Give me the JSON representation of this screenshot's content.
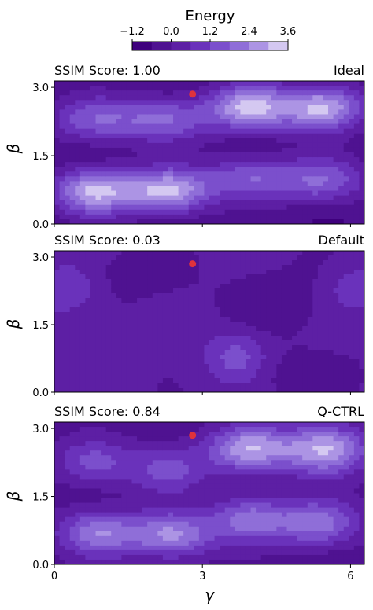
{
  "chart_data": {
    "type": "heatmap",
    "subtype": "filled-contour",
    "colorbar": {
      "label": "Energy",
      "ticks": [
        "−1.2",
        "0.0",
        "1.2",
        "2.4",
        "3.6"
      ],
      "tick_values": [
        -1.2,
        0.0,
        1.2,
        2.4,
        3.6
      ],
      "range": [
        -1.2,
        3.6
      ],
      "levels": [
        -1.2,
        -0.6,
        0.0,
        0.6,
        1.2,
        1.8,
        2.4,
        3.0,
        3.6
      ],
      "colors": [
        "#3f007d",
        "#4f1291",
        "#5d1fa4",
        "#6a32bb",
        "#7b4fcc",
        "#8f6ed8",
        "#ac94e4",
        "#d4c8f1"
      ],
      "orientation": "horizontal",
      "placement": "top"
    },
    "xlabel": "γ",
    "ylabel": "β",
    "xlim": [
      0,
      6.28
    ],
    "ylim": [
      0,
      3.14
    ],
    "xticks": [
      "0",
      "3",
      "6"
    ],
    "xtick_values": [
      0,
      3,
      6
    ],
    "yticks": [
      "0.0",
      "1.5",
      "3.0"
    ],
    "ytick_values": [
      0.0,
      1.5,
      3.0
    ],
    "marker": {
      "x": 2.8,
      "y": 2.85,
      "color": "#e0323c"
    },
    "panels": [
      {
        "title_left": "SSIM Score: 1.00",
        "title_right": "Ideal",
        "base": -0.55,
        "peaks": [
          {
            "x": 0.8,
            "y": 2.3,
            "a": 2.2,
            "sx": 0.65,
            "sy": 0.36
          },
          {
            "x": 2.25,
            "y": 2.3,
            "a": 2.2,
            "sx": 0.65,
            "sy": 0.36
          },
          {
            "x": 3.95,
            "y": 2.55,
            "a": 3.6,
            "sx": 0.6,
            "sy": 0.36
          },
          {
            "x": 5.45,
            "y": 2.55,
            "a": 3.6,
            "sx": 0.6,
            "sy": 0.36
          },
          {
            "x": 0.8,
            "y": 0.72,
            "a": 3.6,
            "sx": 0.6,
            "sy": 0.36
          },
          {
            "x": 2.3,
            "y": 0.72,
            "a": 3.6,
            "sx": 0.6,
            "sy": 0.36
          },
          {
            "x": 3.95,
            "y": 1.0,
            "a": 2.2,
            "sx": 0.65,
            "sy": 0.36
          },
          {
            "x": 5.45,
            "y": 0.95,
            "a": 2.2,
            "sx": 0.65,
            "sy": 0.36
          }
        ]
      },
      {
        "title_left": "SSIM Score: 0.03",
        "title_right": "Default",
        "base": 0.15,
        "peaks": [
          {
            "x": 3.7,
            "y": 0.8,
            "a": 1.4,
            "sx": 0.45,
            "sy": 0.4
          },
          {
            "x": 0.25,
            "y": 2.3,
            "a": 1.1,
            "sx": 0.5,
            "sy": 0.4
          },
          {
            "x": 6.1,
            "y": 2.3,
            "a": 0.9,
            "sx": 0.4,
            "sy": 0.35
          },
          {
            "x": 4.5,
            "y": 2.0,
            "a": -0.6,
            "sx": 0.7,
            "sy": 0.5
          },
          {
            "x": 1.5,
            "y": 2.6,
            "a": -0.5,
            "sx": 0.8,
            "sy": 0.4
          },
          {
            "x": 5.0,
            "y": 0.4,
            "a": -0.5,
            "sx": 0.8,
            "sy": 0.4
          }
        ]
      },
      {
        "title_left": "SSIM Score: 0.84",
        "title_right": "Q-CTRL",
        "base": -0.35,
        "peaks": [
          {
            "x": 0.8,
            "y": 2.25,
            "a": 1.8,
            "sx": 0.55,
            "sy": 0.36
          },
          {
            "x": 2.3,
            "y": 2.1,
            "a": 1.7,
            "sx": 0.55,
            "sy": 0.38
          },
          {
            "x": 3.95,
            "y": 2.55,
            "a": 3.2,
            "sx": 0.6,
            "sy": 0.36
          },
          {
            "x": 5.5,
            "y": 2.55,
            "a": 3.4,
            "sx": 0.6,
            "sy": 0.4
          },
          {
            "x": 0.9,
            "y": 0.7,
            "a": 2.6,
            "sx": 0.6,
            "sy": 0.36
          },
          {
            "x": 2.4,
            "y": 0.65,
            "a": 2.8,
            "sx": 0.6,
            "sy": 0.36
          },
          {
            "x": 3.95,
            "y": 1.0,
            "a": 2.5,
            "sx": 0.55,
            "sy": 0.36
          },
          {
            "x": 5.35,
            "y": 0.9,
            "a": 2.5,
            "sx": 0.6,
            "sy": 0.36
          }
        ]
      }
    ]
  }
}
